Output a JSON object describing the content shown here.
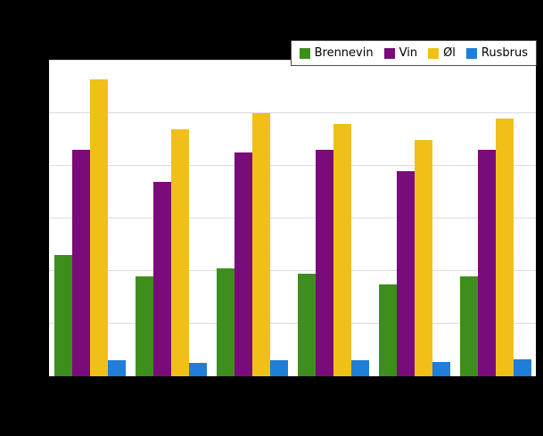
{
  "chart_data": {
    "type": "bar",
    "categories": [
      "",
      "",
      "",
      "",
      "",
      ""
    ],
    "series": [
      {
        "name": "Brennevin",
        "color": "#3e8e1d",
        "values": [
          2.3,
          1.9,
          2.05,
          1.95,
          1.75,
          1.9
        ]
      },
      {
        "name": "Vin",
        "color": "#7a0b7a",
        "values": [
          4.3,
          3.7,
          4.25,
          4.3,
          3.9,
          4.3
        ]
      },
      {
        "name": "Øl",
        "color": "#f0c019",
        "values": [
          5.65,
          4.7,
          5.0,
          4.8,
          4.5,
          4.9
        ]
      },
      {
        "name": "Rusbrus",
        "color": "#1f7ed5",
        "values": [
          0.3,
          0.25,
          0.3,
          0.3,
          0.27,
          0.32
        ]
      }
    ],
    "title": "",
    "xlabel": "",
    "ylabel": "",
    "ylim": [
      0,
      6
    ],
    "grid": true,
    "legend_position": "top-right",
    "plot_background": "#ffffff",
    "page_background": "#000000",
    "gridline_color": "#dcdcdc"
  }
}
